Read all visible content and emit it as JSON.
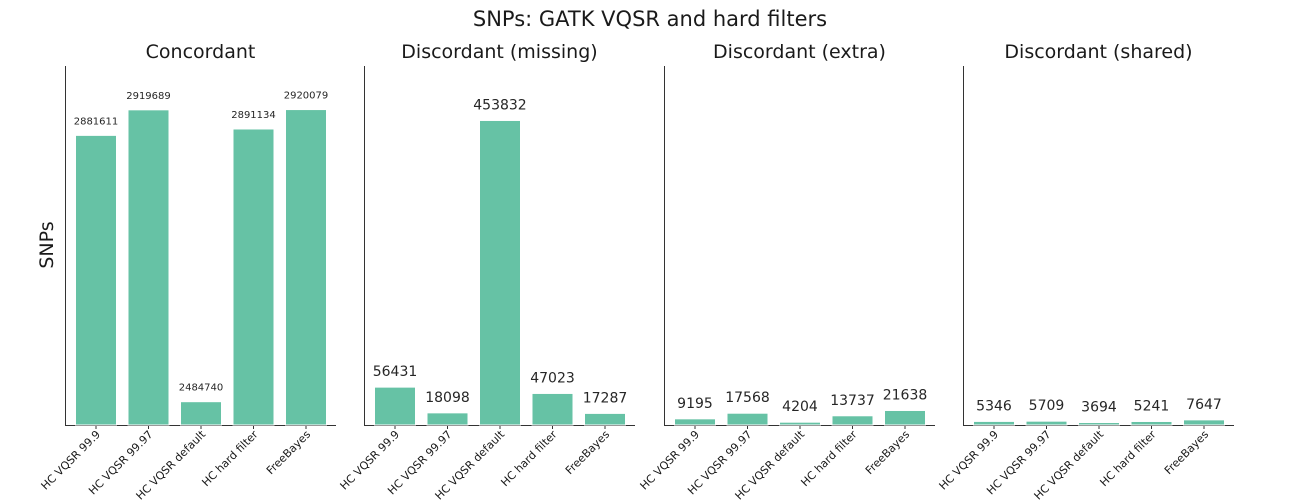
{
  "figure": {
    "title": "SNPs: GATK VQSR and hard filters",
    "ylabel": "SNPs",
    "bar_color": "#66c2a5"
  },
  "chart_data": [
    {
      "type": "bar",
      "title": "Concordant",
      "categories": [
        "HC VQSR 99.9",
        "HC VQSR 99.97",
        "HC VQSR default",
        "HC hard filter",
        "FreeBayes"
      ],
      "values": [
        2881611,
        2919689,
        2484740,
        2891134,
        2920079
      ],
      "ylim": [
        2450000,
        2985000
      ],
      "label_style": "small"
    },
    {
      "type": "bar",
      "title": "Discordant (missing)",
      "categories": [
        "HC VQSR 99.9",
        "HC VQSR 99.97",
        "HC VQSR default",
        "HC hard filter",
        "FreeBayes"
      ],
      "values": [
        56431,
        18098,
        453832,
        47023,
        17287
      ],
      "ylim": [
        0,
        535000
      ],
      "label_style": "big"
    },
    {
      "type": "bar",
      "title": "Discordant (extra)",
      "categories": [
        "HC VQSR 99.9",
        "HC VQSR 99.97",
        "HC VQSR default",
        "HC hard filter",
        "FreeBayes"
      ],
      "values": [
        9195,
        17568,
        4204,
        13737,
        21638
      ],
      "ylim": [
        0,
        535000
      ],
      "label_style": "big"
    },
    {
      "type": "bar",
      "title": "Discordant (shared)",
      "categories": [
        "HC VQSR 99.9",
        "HC VQSR 99.97",
        "HC VQSR default",
        "HC hard filter",
        "FreeBayes"
      ],
      "values": [
        5346,
        5709,
        3694,
        5241,
        7647
      ],
      "ylim": [
        0,
        535000
      ],
      "label_style": "big"
    }
  ]
}
